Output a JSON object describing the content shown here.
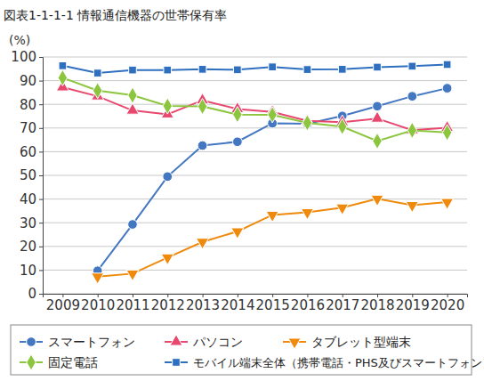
{
  "chart_data": {
    "type": "line",
    "title": "図表1-1-1-1  情報通信機器の世帯保有率",
    "ylabel": "(%)",
    "categories": [
      "2009",
      "2010",
      "2011",
      "2012",
      "2013",
      "2014",
      "2015",
      "2016",
      "2017",
      "2018",
      "2019",
      "2020"
    ],
    "ylim": [
      0,
      100
    ],
    "yticks": [
      0,
      10,
      20,
      30,
      40,
      50,
      60,
      70,
      80,
      90,
      100
    ],
    "grid": true,
    "legend": "bottom",
    "series": [
      {
        "name": "スマートフォン",
        "color": "#4477c2",
        "marker": "circle",
        "values": [
          null,
          9.7,
          29.3,
          49.5,
          62.6,
          64.2,
          72.0,
          71.8,
          75.1,
          79.2,
          83.4,
          86.8
        ]
      },
      {
        "name": "パソコン",
        "color": "#e8476e",
        "marker": "triangle-up",
        "values": [
          87.2,
          83.4,
          77.4,
          75.8,
          81.7,
          78.0,
          76.8,
          73.0,
          72.5,
          74.0,
          69.1,
          70.1
        ]
      },
      {
        "name": "タブレット型端末",
        "color": "#ef8a0c",
        "marker": "triangle-down",
        "values": [
          null,
          7.2,
          8.5,
          15.3,
          21.9,
          26.3,
          33.3,
          34.4,
          36.4,
          40.1,
          37.4,
          38.7
        ]
      },
      {
        "name": "固定電話",
        "color": "#8cc63f",
        "marker": "diamond",
        "values": [
          91.2,
          85.8,
          83.8,
          79.3,
          79.1,
          75.7,
          75.6,
          72.2,
          70.6,
          64.5,
          69.0,
          68.1
        ]
      },
      {
        "name": "モバイル端末全体（携帯電話・PHS及びスマートフォン）",
        "color": "#2f6fc0",
        "marker": "square",
        "values": [
          96.3,
          93.2,
          94.5,
          94.5,
          94.8,
          94.6,
          95.8,
          94.7,
          94.8,
          95.7,
          96.1,
          96.8
        ]
      }
    ]
  }
}
